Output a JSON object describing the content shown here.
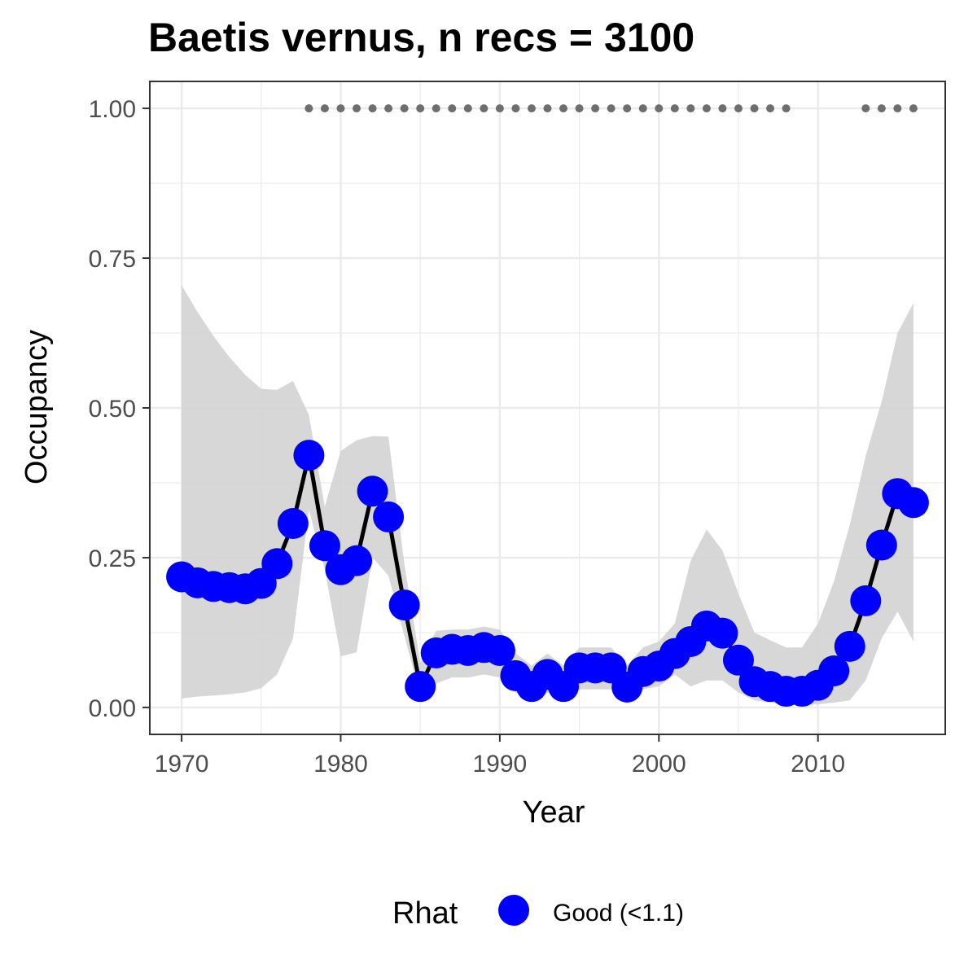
{
  "chart_data": {
    "type": "line",
    "title": "Baetis vernus, n recs = 3100",
    "xlabel": "Year",
    "ylabel": "Occupancy",
    "xlim": [
      1968,
      2018
    ],
    "ylim": [
      -0.045,
      1.045
    ],
    "x_ticks": [
      1970,
      1980,
      1990,
      2000,
      2010
    ],
    "y_ticks": [
      0.0,
      0.25,
      0.5,
      0.75,
      1.0
    ],
    "x_tick_labels": [
      "1970",
      "1980",
      "1990",
      "2000",
      "2010"
    ],
    "y_tick_labels": [
      "0.00",
      "0.25",
      "0.50",
      "0.75",
      "1.00"
    ],
    "grid": true,
    "legend": {
      "position": "bottom",
      "title": "Rhat",
      "entries": [
        {
          "label": "Good (<1.1)",
          "color": "#0000ff"
        }
      ]
    },
    "colors": {
      "points": "#0000ff",
      "line": "#000000",
      "ribbon": "#d3d3d3",
      "record_dots": "#6e6e6e",
      "grid": "#ebebeb",
      "panel_border": "#333333"
    },
    "series": [
      {
        "x": [
          1970,
          1971,
          1972,
          1973,
          1974,
          1975,
          1976,
          1977,
          1978,
          1979,
          1980,
          1981,
          1982,
          1983,
          1984,
          1985,
          1986,
          1987,
          1988,
          1989,
          1990,
          1991,
          1992,
          1993,
          1994,
          1995,
          1996,
          1997,
          1998,
          1999,
          2000,
          2001,
          2002,
          2003,
          2004,
          2005,
          2006,
          2007,
          2008,
          2009,
          2010,
          2011,
          2012,
          2013,
          2014,
          2015,
          2016
        ],
        "y": [
          0.218,
          0.208,
          0.202,
          0.2,
          0.198,
          0.207,
          0.24,
          0.307,
          0.421,
          0.27,
          0.23,
          0.245,
          0.361,
          0.318,
          0.171,
          0.035,
          0.091,
          0.097,
          0.095,
          0.1,
          0.095,
          0.053,
          0.035,
          0.055,
          0.035,
          0.066,
          0.066,
          0.066,
          0.034,
          0.06,
          0.069,
          0.09,
          0.11,
          0.136,
          0.124,
          0.079,
          0.043,
          0.035,
          0.027,
          0.027,
          0.037,
          0.061,
          0.102,
          0.178,
          0.271,
          0.357,
          0.342
        ],
        "lower": [
          0.015,
          0.018,
          0.02,
          0.022,
          0.025,
          0.032,
          0.055,
          0.115,
          0.33,
          0.23,
          0.085,
          0.092,
          0.25,
          0.22,
          0.12,
          0.02,
          0.04,
          0.05,
          0.05,
          0.055,
          0.05,
          0.025,
          0.015,
          0.025,
          0.015,
          0.03,
          0.03,
          0.03,
          0.015,
          0.03,
          0.035,
          0.055,
          0.035,
          0.045,
          0.045,
          0.025,
          0.012,
          0.008,
          0.005,
          0.005,
          0.005,
          0.008,
          0.012,
          0.045,
          0.115,
          0.16,
          0.11
        ],
        "upper": [
          0.705,
          0.66,
          0.62,
          0.585,
          0.555,
          0.532,
          0.53,
          0.545,
          0.488,
          0.335,
          0.428,
          0.446,
          0.453,
          0.452,
          0.24,
          0.075,
          0.128,
          0.13,
          0.13,
          0.135,
          0.13,
          0.09,
          0.07,
          0.09,
          0.07,
          0.1,
          0.1,
          0.1,
          0.07,
          0.1,
          0.11,
          0.14,
          0.245,
          0.297,
          0.262,
          0.19,
          0.125,
          0.112,
          0.1,
          0.1,
          0.14,
          0.21,
          0.305,
          0.42,
          0.51,
          0.625,
          0.675
        ]
      }
    ],
    "records": {
      "y": 1.0,
      "x": [
        1978,
        1979,
        1980,
        1981,
        1982,
        1983,
        1984,
        1985,
        1986,
        1987,
        1988,
        1989,
        1990,
        1991,
        1992,
        1993,
        1994,
        1995,
        1996,
        1997,
        1998,
        1999,
        2000,
        2001,
        2002,
        2003,
        2004,
        2005,
        2006,
        2007,
        2008,
        2013,
        2014,
        2015,
        2016
      ]
    }
  }
}
